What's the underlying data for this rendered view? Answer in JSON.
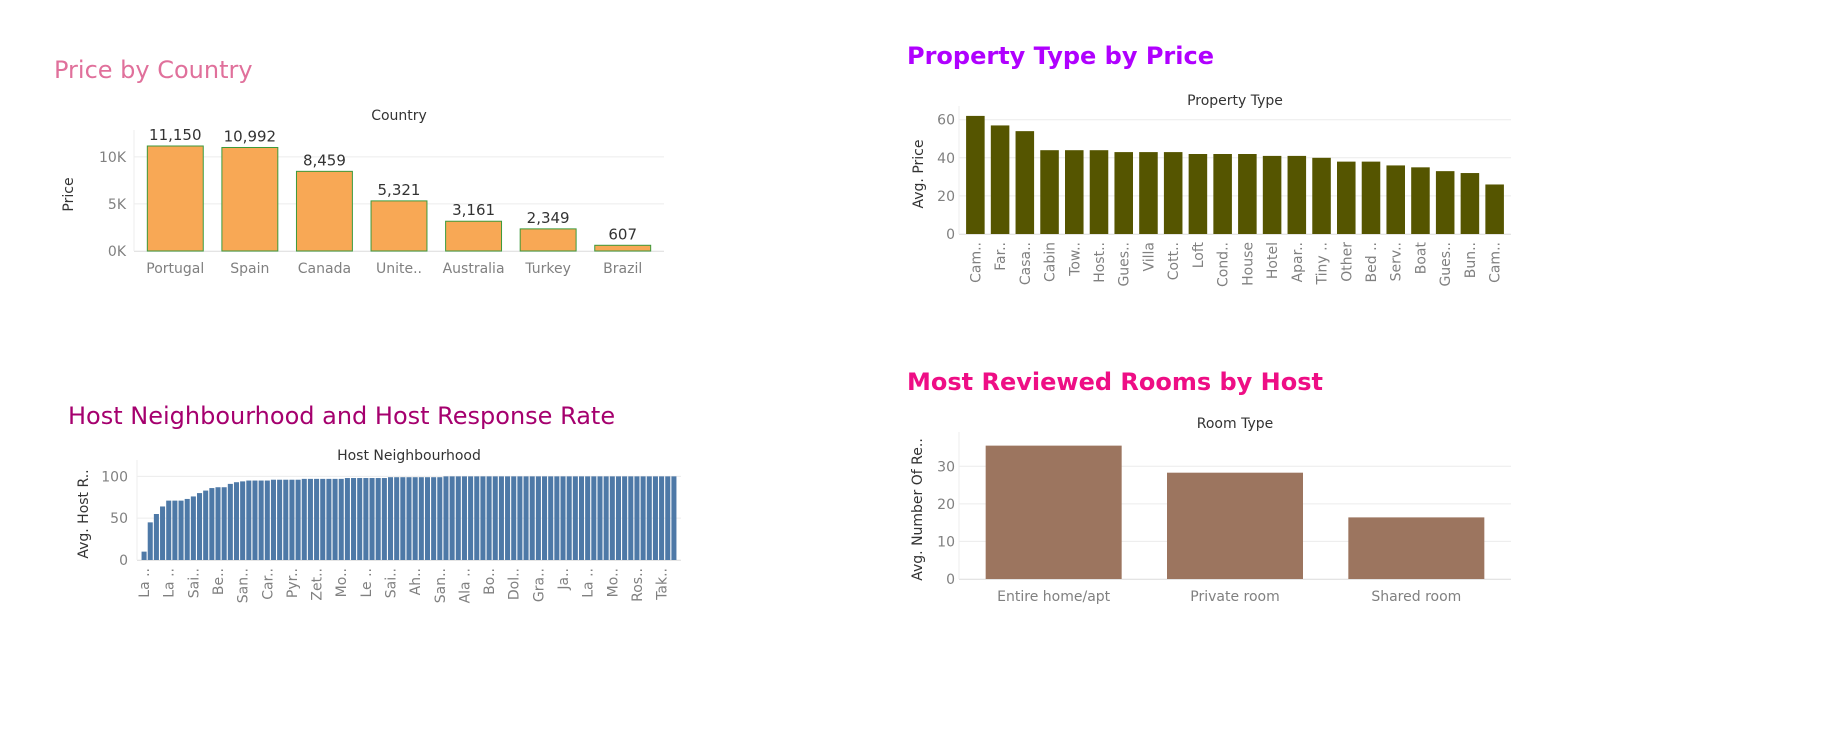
{
  "titles": {
    "country": "Price by Country",
    "property": "Property Type by Price",
    "neighbourhood": "Host Neighbourhood and Host Response Rate",
    "reviews": "Most Reviewed Rooms by Host"
  },
  "colors": {
    "title_country": "#e0709b",
    "title_property": "#b000ff",
    "title_neighbourhood": "#a5006e",
    "title_reviews": "#ee0e85",
    "bar_country": "#f8a855",
    "bar_country_outline": "#3c9a3c",
    "bar_property": "#555500",
    "bar_neighbourhood": "#4e79a7",
    "bar_reviews": "#9c755f"
  },
  "chart_data": [
    {
      "type": "bar",
      "header": "Country",
      "ylabel": "Price",
      "categories": [
        "Portugal",
        "Spain",
        "Canada",
        "Unite..",
        "Australia",
        "Turkey",
        "Brazil"
      ],
      "values": [
        11150,
        10992,
        8459,
        5321,
        3161,
        2349,
        607
      ],
      "value_labels": [
        "11,150",
        "10,992",
        "8,459",
        "5,321",
        "3,161",
        "2,349",
        "607"
      ],
      "ylim": [
        0,
        12000
      ],
      "yticks": [
        0,
        5000,
        10000
      ],
      "ytick_labels": [
        "0K",
        "5K",
        "10K"
      ],
      "grid": true
    },
    {
      "type": "bar",
      "header": "Property Type",
      "ylabel": "Avg. Price",
      "categories": [
        "Cam..",
        "Far..",
        "Casa..",
        "Cabin",
        "Tow..",
        "Host..",
        "Gues..",
        "Villa",
        "Cott..",
        "Loft",
        "Cond..",
        "House",
        "Hotel",
        "Apar..",
        "Tiny ..",
        "Other",
        "Bed ..",
        "Serv..",
        "Boat",
        "Gues..",
        "Bun..",
        "Cam.."
      ],
      "values": [
        62,
        57,
        54,
        44,
        44,
        44,
        43,
        43,
        43,
        42,
        42,
        42,
        41,
        41,
        40,
        38,
        38,
        36,
        35,
        33,
        32,
        26
      ],
      "ylim": [
        0,
        63
      ],
      "yticks": [
        0,
        20,
        40,
        60
      ],
      "grid": true
    },
    {
      "type": "bar",
      "header": "Host Neighbourhood",
      "ylabel": "Avg. Host R..",
      "tick_labels": [
        "La ..",
        "La ..",
        "Sai..",
        "Be..",
        "San..",
        "Car..",
        "Pyr..",
        "Zet..",
        "Mo..",
        "Le ..",
        "Sai..",
        "Ah..",
        "San..",
        "Ala ..",
        "Bo..",
        "Dol..",
        "Gra..",
        "Ja..",
        "La ..",
        "Mo..",
        "Ros..",
        "Tak.."
      ],
      "tick_every": 4,
      "values": [
        10,
        45,
        55,
        64,
        71,
        71,
        71,
        73,
        76,
        80,
        83,
        86,
        87,
        87,
        91,
        93,
        94,
        95,
        95,
        95,
        95,
        96,
        96,
        96,
        96,
        96,
        97,
        97,
        97,
        97,
        97,
        97,
        97,
        98,
        98,
        98,
        98,
        98,
        98,
        98,
        99,
        99,
        99,
        99,
        99,
        99,
        99,
        99,
        99,
        100,
        100,
        100,
        100,
        100,
        100,
        100,
        100,
        100,
        100,
        100,
        100,
        100,
        100,
        100,
        100,
        100,
        100,
        100,
        100,
        100,
        100,
        100,
        100,
        100,
        100,
        100,
        100,
        100,
        100,
        100,
        100,
        100,
        100,
        100,
        100,
        100,
        100
      ],
      "ylim": [
        0,
        110
      ],
      "yticks": [
        0,
        50,
        100
      ],
      "grid": true
    },
    {
      "type": "bar",
      "header": "Room Type",
      "ylabel": "Avg. Number Of Re..",
      "categories": [
        "Entire home/apt",
        "Private room",
        "Shared room"
      ],
      "values": [
        35.5,
        28.3,
        16.4
      ],
      "ylim": [
        0,
        37
      ],
      "yticks": [
        0,
        10,
        20,
        30
      ],
      "grid": true
    }
  ]
}
